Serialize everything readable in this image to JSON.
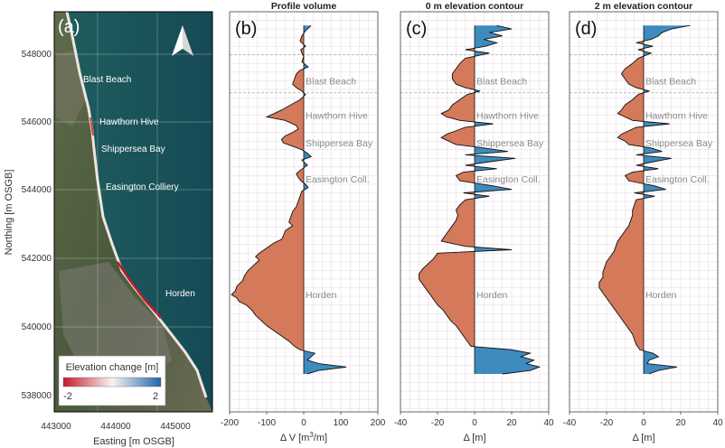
{
  "colors": {
    "erosion": "#d4795a",
    "accretion": "#3e8bbf",
    "line": "#111111",
    "grid": "#e6d6e0"
  },
  "map": {
    "letter": "(a)",
    "xlabel": "Easting [m OSGB]",
    "ylabel": "Northing [m OSGB]",
    "xticks": [
      "443000",
      "444000",
      "445000"
    ],
    "yticks": [
      "548000",
      "546000",
      "544000",
      "542000",
      "540000",
      "538000"
    ],
    "locations": [
      "Blast Beach",
      "Hawthorn Hive",
      "Shippersea Bay",
      "Easington Colliery",
      "Horden"
    ],
    "legend": {
      "title": "Elevation change [m]",
      "min": "-2",
      "max": "2"
    }
  },
  "chart_data": [
    {
      "type": "area",
      "title": "Profile volume",
      "letter": "(b)",
      "xlabel_main": "Δ V [m",
      "xlabel_sup": "3",
      "xlabel_tail": "/m]",
      "xlim": [
        -200,
        200
      ],
      "xticks": [
        "-200",
        "-100",
        "0",
        "100",
        "200"
      ],
      "ylim": [
        537400,
        549000
      ],
      "locations": [
        "Blast Beach",
        "Hawthorn Hive",
        "Shippersea Bay",
        "Easington Coll.",
        "Horden"
      ],
      "profile": [
        [
          548600,
          20
        ],
        [
          548450,
          5
        ],
        [
          548300,
          -5
        ],
        [
          548150,
          -10
        ],
        [
          548000,
          5
        ],
        [
          547900,
          -8
        ],
        [
          547800,
          -5
        ],
        [
          547700,
          0
        ],
        [
          547550,
          -5
        ],
        [
          547400,
          12
        ],
        [
          547300,
          -10
        ],
        [
          547200,
          -20
        ],
        [
          547050,
          -25
        ],
        [
          546900,
          -30
        ],
        [
          546800,
          -20
        ],
        [
          546700,
          -5
        ],
        [
          546600,
          5
        ],
        [
          546450,
          -10
        ],
        [
          546300,
          -35
        ],
        [
          546150,
          -60
        ],
        [
          546050,
          -80
        ],
        [
          545950,
          -100
        ],
        [
          545850,
          -50
        ],
        [
          545700,
          -20
        ],
        [
          545600,
          -15
        ],
        [
          545500,
          -30
        ],
        [
          545400,
          -50
        ],
        [
          545300,
          -60
        ],
        [
          545200,
          -55
        ],
        [
          545100,
          -30
        ],
        [
          545000,
          -5
        ],
        [
          544900,
          10
        ],
        [
          544800,
          20
        ],
        [
          544700,
          -5
        ],
        [
          544550,
          10
        ],
        [
          544400,
          -10
        ],
        [
          544300,
          -20
        ],
        [
          544200,
          -15
        ],
        [
          544100,
          -8
        ],
        [
          544000,
          5
        ],
        [
          543900,
          12
        ],
        [
          543800,
          -5
        ],
        [
          543650,
          -10
        ],
        [
          543500,
          -15
        ],
        [
          543350,
          -20
        ],
        [
          543200,
          -30
        ],
        [
          543050,
          -35
        ],
        [
          542900,
          -40
        ],
        [
          542800,
          -30
        ],
        [
          542650,
          -50
        ],
        [
          542500,
          -55
        ],
        [
          542400,
          -60
        ],
        [
          542300,
          -80
        ],
        [
          542150,
          -100
        ],
        [
          542000,
          -120
        ],
        [
          541900,
          -130
        ],
        [
          541800,
          -120
        ],
        [
          541650,
          -135
        ],
        [
          541500,
          -150
        ],
        [
          541350,
          -160
        ],
        [
          541200,
          -165
        ],
        [
          541050,
          -180
        ],
        [
          540900,
          -185
        ],
        [
          540800,
          -195
        ],
        [
          540700,
          -180
        ],
        [
          540600,
          -175
        ],
        [
          540500,
          -155
        ],
        [
          540350,
          -140
        ],
        [
          540200,
          -130
        ],
        [
          540050,
          -115
        ],
        [
          539900,
          -100
        ],
        [
          539750,
          -80
        ],
        [
          539600,
          -60
        ],
        [
          539450,
          -40
        ],
        [
          539300,
          -25
        ],
        [
          539200,
          -10
        ],
        [
          539100,
          30
        ],
        [
          539000,
          20
        ],
        [
          538900,
          10
        ],
        [
          538800,
          40
        ],
        [
          538700,
          115
        ],
        [
          538600,
          40
        ],
        [
          538500,
          10
        ]
      ]
    },
    {
      "type": "area",
      "title": "0 m elevation contour",
      "letter": "(c)",
      "xlabel_main": "Δ [m]",
      "xlim": [
        -40,
        40
      ],
      "xticks": [
        "-40",
        "-20",
        "0",
        "20",
        "40"
      ],
      "ylim": [
        537400,
        549000
      ],
      "locations": [
        "Blast Beach",
        "Hawthorn Hive",
        "Shippersea Bay",
        "Easington Coll.",
        "Horden"
      ],
      "profile": [
        [
          548600,
          12
        ],
        [
          548500,
          20
        ],
        [
          548400,
          8
        ],
        [
          548300,
          15
        ],
        [
          548200,
          5
        ],
        [
          548100,
          12
        ],
        [
          548000,
          6
        ],
        [
          547900,
          -5
        ],
        [
          547800,
          8
        ],
        [
          547650,
          -5
        ],
        [
          547500,
          -8
        ],
        [
          547350,
          -10
        ],
        [
          547200,
          -12
        ],
        [
          547050,
          -12
        ],
        [
          546900,
          -10
        ],
        [
          546800,
          -5
        ],
        [
          546700,
          3
        ],
        [
          546600,
          -4
        ],
        [
          546450,
          -8
        ],
        [
          546300,
          -12
        ],
        [
          546150,
          -14
        ],
        [
          546050,
          -18
        ],
        [
          545950,
          -15
        ],
        [
          545850,
          -8
        ],
        [
          545750,
          10
        ],
        [
          545650,
          -5
        ],
        [
          545550,
          -10
        ],
        [
          545450,
          -15
        ],
        [
          545350,
          -18
        ],
        [
          545250,
          -14
        ],
        [
          545150,
          -10
        ],
        [
          545050,
          5
        ],
        [
          544950,
          18
        ],
        [
          544850,
          -5
        ],
        [
          544750,
          22
        ],
        [
          544650,
          8
        ],
        [
          544550,
          -5
        ],
        [
          544450,
          12
        ],
        [
          544350,
          -6
        ],
        [
          544250,
          -10
        ],
        [
          544100,
          -8
        ],
        [
          543950,
          10
        ],
        [
          543850,
          20
        ],
        [
          543750,
          -6
        ],
        [
          543650,
          8
        ],
        [
          543550,
          -5
        ],
        [
          543400,
          -8
        ],
        [
          543250,
          -10
        ],
        [
          543100,
          -9
        ],
        [
          542950,
          -10
        ],
        [
          542800,
          -12
        ],
        [
          542650,
          -14
        ],
        [
          542500,
          -16
        ],
        [
          542350,
          -18
        ],
        [
          542200,
          -5
        ],
        [
          542100,
          20
        ],
        [
          542000,
          -20
        ],
        [
          541850,
          -22
        ],
        [
          541700,
          -25
        ],
        [
          541550,
          -28
        ],
        [
          541400,
          -30
        ],
        [
          541250,
          -30
        ],
        [
          541100,
          -28
        ],
        [
          540950,
          -26
        ],
        [
          540800,
          -24
        ],
        [
          540650,
          -22
        ],
        [
          540500,
          -20
        ],
        [
          540350,
          -17
        ],
        [
          540200,
          -15
        ],
        [
          540050,
          -13
        ],
        [
          539900,
          -10
        ],
        [
          539750,
          -8
        ],
        [
          539600,
          -6
        ],
        [
          539450,
          -4
        ],
        [
          539300,
          -2
        ],
        [
          539200,
          20
        ],
        [
          539100,
          30
        ],
        [
          539000,
          25
        ],
        [
          538900,
          32
        ],
        [
          538800,
          28
        ],
        [
          538700,
          35
        ],
        [
          538600,
          30
        ],
        [
          538500,
          15
        ]
      ]
    },
    {
      "type": "area",
      "title": "2 m elevation contour",
      "letter": "(d)",
      "xlabel_main": "Δ [m]",
      "xlim": [
        -40,
        40
      ],
      "xticks": [
        "-40",
        "-20",
        "0",
        "20",
        "40"
      ],
      "ylim": [
        537400,
        549000
      ],
      "locations": [
        "Blast Beach",
        "Hawthorn Hive",
        "Shippersea Bay",
        "Easington Coll.",
        "Horden"
      ],
      "profile": [
        [
          548600,
          25
        ],
        [
          548500,
          15
        ],
        [
          548400,
          10
        ],
        [
          548300,
          8
        ],
        [
          548200,
          4
        ],
        [
          548100,
          -4
        ],
        [
          548000,
          5
        ],
        [
          547900,
          -3
        ],
        [
          547800,
          4
        ],
        [
          547650,
          -3
        ],
        [
          547500,
          -6
        ],
        [
          547350,
          -10
        ],
        [
          547200,
          -12
        ],
        [
          547050,
          -10
        ],
        [
          546900,
          -8
        ],
        [
          546800,
          -4
        ],
        [
          546700,
          3
        ],
        [
          546600,
          -3
        ],
        [
          546450,
          -6
        ],
        [
          546300,
          -10
        ],
        [
          546150,
          -12
        ],
        [
          546050,
          -14
        ],
        [
          545950,
          -10
        ],
        [
          545850,
          -6
        ],
        [
          545750,
          14
        ],
        [
          545650,
          -4
        ],
        [
          545550,
          -8
        ],
        [
          545450,
          -12
        ],
        [
          545350,
          -14
        ],
        [
          545250,
          -10
        ],
        [
          545150,
          -8
        ],
        [
          545050,
          4
        ],
        [
          544950,
          10
        ],
        [
          544850,
          -4
        ],
        [
          544750,
          15
        ],
        [
          544650,
          5
        ],
        [
          544550,
          -4
        ],
        [
          544450,
          8
        ],
        [
          544350,
          -6
        ],
        [
          544250,
          -10
        ],
        [
          544100,
          -8
        ],
        [
          543950,
          6
        ],
        [
          543850,
          12
        ],
        [
          543750,
          -5
        ],
        [
          543650,
          6
        ],
        [
          543550,
          -4
        ],
        [
          543400,
          -5
        ],
        [
          543250,
          -6
        ],
        [
          543100,
          -6
        ],
        [
          542950,
          -7
        ],
        [
          542800,
          -8
        ],
        [
          542650,
          -10
        ],
        [
          542500,
          -12
        ],
        [
          542350,
          -14
        ],
        [
          542200,
          -15
        ],
        [
          542050,
          -16
        ],
        [
          541900,
          -18
        ],
        [
          541750,
          -20
        ],
        [
          541600,
          -21
        ],
        [
          541450,
          -22
        ],
        [
          541300,
          -22
        ],
        [
          541150,
          -24
        ],
        [
          541000,
          -24
        ],
        [
          540850,
          -22
        ],
        [
          540700,
          -20
        ],
        [
          540550,
          -18
        ],
        [
          540400,
          -16
        ],
        [
          540250,
          -14
        ],
        [
          540100,
          -12
        ],
        [
          539950,
          -10
        ],
        [
          539800,
          -8
        ],
        [
          539650,
          -6
        ],
        [
          539500,
          -5
        ],
        [
          539350,
          -4
        ],
        [
          539200,
          -2
        ],
        [
          539100,
          5
        ],
        [
          539000,
          8
        ],
        [
          538900,
          3
        ],
        [
          538800,
          2
        ],
        [
          538700,
          18
        ],
        [
          538600,
          8
        ],
        [
          538500,
          3
        ]
      ]
    }
  ]
}
